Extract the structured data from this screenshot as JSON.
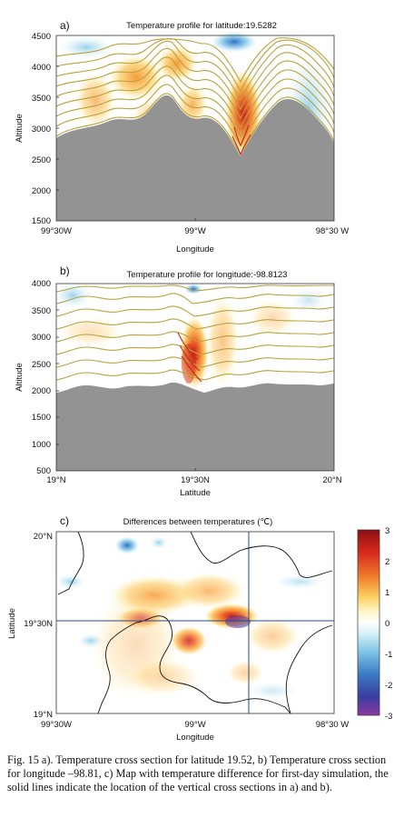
{
  "panels": [
    {
      "id": "a",
      "letter": "a)",
      "title": "Temperature profile for latitude:19.5282",
      "xlabel": "Longitude",
      "ylabel": "Altitude",
      "x_ticks": [
        "99°30W",
        "99°W",
        "98°30 W"
      ],
      "y_ticks": [
        "1500",
        "2000",
        "2500",
        "3000",
        "3500",
        "4000",
        "4500"
      ]
    },
    {
      "id": "b",
      "letter": "b)",
      "title": "Temperature profile for longitude:-98.8123",
      "xlabel": "Latitude",
      "ylabel": "Altitude",
      "x_ticks": [
        "19°N",
        "19°30N",
        "20°N"
      ],
      "y_ticks": [
        "500",
        "1000",
        "1500",
        "2000",
        "2500",
        "3000",
        "3500",
        "4000"
      ]
    },
    {
      "id": "c",
      "letter": "c)",
      "title": "Differences between temperatures (℃)",
      "xlabel": "Longitude",
      "ylabel": "Latitude",
      "x_ticks": [
        "99°30W",
        "99°W",
        "98°30 W"
      ],
      "y_ticks": [
        "19°N",
        "19°30N",
        "20°N"
      ],
      "colorbar_ticks": [
        "3",
        "2",
        "1",
        "0",
        "-1",
        "-2",
        "-3"
      ]
    }
  ],
  "colors": {
    "terrain": "#939393",
    "contour": "#b8a23c",
    "warm": "#e8452a",
    "cold": "#6bb6dc"
  },
  "caption": "Fig. 15 a). Temperature cross section for latitude 19.52, b) Temperature cross section for longitude –98.81, c) Map with temperature difference for first-day simulation, the solid lines indicate the location of the vertical cross sections in a) and b)."
}
